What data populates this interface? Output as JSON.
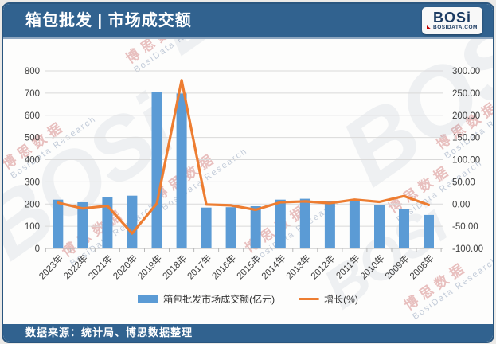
{
  "header": {
    "title": "箱包批发 | 市场成交额",
    "logo": {
      "text": "BOSi",
      "sub": "BOSIDATA.COM"
    }
  },
  "footer": {
    "source": "数据来源：统计局、博思数据整理"
  },
  "legend": [
    {
      "label": "箱包批发市场成交额(亿元)",
      "type": "bar",
      "color": "#5b9bd5"
    },
    {
      "label": "增长(%)",
      "type": "line",
      "color": "#ed7d31"
    }
  ],
  "watermark": {
    "cn": "博思数据",
    "en": "BosiData Research",
    "logo": "BOSi"
  },
  "colors": {
    "header_bg": "#31628f",
    "bar": "#5b9bd5",
    "line": "#ed7d31",
    "grid": "#d9d9d9",
    "axis": "#b7b7b7",
    "tick_text": "#3f3f3f"
  },
  "chart_data": {
    "type": "bar",
    "subtype": "bar-line-combo",
    "title": "箱包批发 | 市场成交额",
    "categories": [
      "2023年",
      "2022年",
      "2021年",
      "2020年",
      "2019年",
      "2018年",
      "2017年",
      "2016年",
      "2015年",
      "2014年",
      "2013年",
      "2012年",
      "2011年",
      "2010年",
      "2009年",
      "2008年"
    ],
    "series": [
      {
        "name": "箱包批发市场成交额(亿元)",
        "type": "bar",
        "axis": "left",
        "values": [
          220,
          208,
          230,
          238,
          704,
          698,
          184,
          186,
          190,
          220,
          224,
          212,
          221,
          195,
          179,
          151
        ]
      },
      {
        "name": "增长(%)",
        "type": "line",
        "axis": "right",
        "values": [
          3,
          -10,
          -4,
          -66,
          1,
          279,
          -1,
          -3,
          -13,
          4,
          6,
          2,
          10,
          5,
          18,
          -2
        ]
      }
    ],
    "left_axis": {
      "min": 0,
      "max": 800,
      "step": 100,
      "ticks": [
        "0",
        "100",
        "200",
        "300",
        "400",
        "500",
        "600",
        "700",
        "800"
      ]
    },
    "right_axis": {
      "min": -100,
      "max": 300,
      "step": 50,
      "ticks": [
        "-100.00",
        "-50.00",
        "0.00",
        "50.00",
        "100.00",
        "150.00",
        "200.00",
        "250.00",
        "300.00"
      ]
    },
    "grid": true,
    "legend_position": "bottom"
  }
}
